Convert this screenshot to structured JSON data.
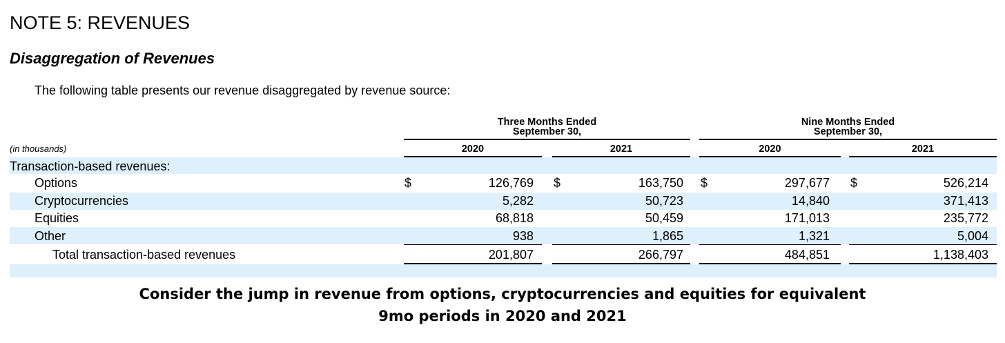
{
  "heading": "NOTE 5: REVENUES",
  "subheading": "Disaggregation of Revenues",
  "intro": "The following table presents our revenue disaggregated by revenue source:",
  "table": {
    "units_label": "(in thousands)",
    "periods": [
      {
        "line1": "Three Months Ended",
        "line2": "September 30,"
      },
      {
        "line1": "Nine Months Ended",
        "line2": "September 30,"
      }
    ],
    "years": [
      "2020",
      "2021",
      "2020",
      "2021"
    ],
    "currency_symbol": "$",
    "section_label": "Transaction-based revenues:",
    "rows": [
      {
        "label": "Options",
        "values": [
          "126,769",
          "163,750",
          "297,677",
          "526,214"
        ]
      },
      {
        "label": "Cryptocurrencies",
        "values": [
          "5,282",
          "50,723",
          "14,840",
          "371,413"
        ]
      },
      {
        "label": "Equities",
        "values": [
          "68,818",
          "50,459",
          "171,013",
          "235,772"
        ]
      },
      {
        "label": "Other",
        "values": [
          "938",
          "1,865",
          "1,321",
          "5,004"
        ]
      }
    ],
    "total": {
      "label": "Total transaction-based revenues",
      "values": [
        "201,807",
        "266,797",
        "484,851",
        "1,138,403"
      ]
    }
  },
  "caption": {
    "line1": "Consider the jump in revenue from options, cryptocurrencies and equities for equivalent",
    "line2": "9mo periods in 2020 and 2021"
  },
  "colors": {
    "band": "#ddf0fb",
    "text": "#000000"
  }
}
